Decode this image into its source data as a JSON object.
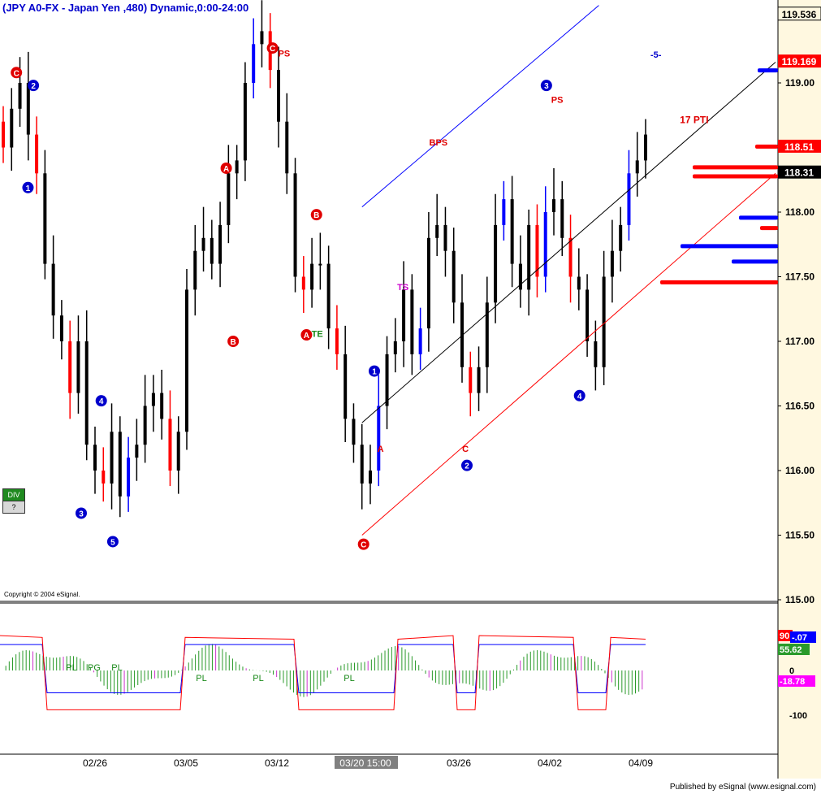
{
  "title": "(JPY A0-FX - Japan Yen  ,480) Dynamic,0:00-24:00",
  "copyright": "Copyright © 2004 eSignal.",
  "published": "Published by eSignal (www.esignal.com)",
  "buttons": {
    "div": "DIV",
    "help": "?"
  },
  "colors": {
    "background": "#ffffff",
    "axis_bg": "#fff8e0",
    "up": "#0000ff",
    "down": "#ff0000",
    "neutral": "#000000",
    "channel_top": "#0000ff",
    "channel_bottom": "#ff0000",
    "channel_mid": "#000000",
    "histogram_green": "#2a9a2a",
    "histogram_magenta": "#cc33cc"
  },
  "chart_data": [
    {
      "type": "candlestick",
      "title": "(JPY A0-FX - Japan Yen  ,480) Dynamic,0:00-24:00",
      "ylim": [
        115.0,
        119.6
      ],
      "y_ticks": [
        "119.00",
        "118.50",
        "118.00",
        "117.50",
        "117.00",
        "116.50",
        "116.00",
        "115.50",
        "115.00"
      ],
      "y_tick_values": [
        119.0,
        118.5,
        118.0,
        117.5,
        117.0,
        116.5,
        116.0,
        115.5,
        115.0
      ],
      "x_labels": [
        "02/26",
        "03/05",
        "03/12",
        "03/20 15:00",
        "03/26",
        "04/02",
        "04/09"
      ],
      "highlighted_x_label": "03/20 15:00",
      "price_labels": [
        {
          "text": "119.536",
          "value": 119.536,
          "color": "#fff8e0",
          "text_color": "#000000"
        },
        {
          "text": "119.169",
          "value": 119.169,
          "color": "#ff0000",
          "text_color": "#ffffff"
        },
        {
          "text": "118.51",
          "value": 118.51,
          "color": "#ff0000",
          "text_color": "#ffffff"
        },
        {
          "text": "118.31",
          "value": 118.31,
          "color": "#000000",
          "text_color": "#ffffff"
        }
      ],
      "closes": [
        118.5,
        118.8,
        119.0,
        118.6,
        118.3,
        117.6,
        117.2,
        117.0,
        116.6,
        117.0,
        116.2,
        116.0,
        115.9,
        116.3,
        115.8,
        116.1,
        116.2,
        116.5,
        116.6,
        116.4,
        116.0,
        116.3,
        117.4,
        117.7,
        117.8,
        117.6,
        117.9,
        118.3,
        118.4,
        119.0,
        119.3,
        119.4,
        119.1,
        118.7,
        118.3,
        117.5,
        117.4,
        117.6,
        117.6,
        117.1,
        116.9,
        116.4,
        116.2,
        115.9,
        116.0,
        116.5,
        116.9,
        117.0,
        117.4,
        116.9,
        117.1,
        117.8,
        117.9,
        117.7,
        117.3,
        116.8,
        116.6,
        116.8,
        117.3,
        117.9,
        118.1,
        117.6,
        117.4,
        117.9,
        117.5,
        118.0,
        118.1,
        117.8,
        117.5,
        117.4,
        117.0,
        116.8,
        117.5,
        117.7,
        117.9,
        118.3,
        118.4,
        118.6
      ],
      "annotations": [
        {
          "text": "C",
          "style": "circle-red",
          "x": 0.016,
          "y": 119.08
        },
        {
          "text": "2",
          "style": "circle-blue",
          "x": 0.038,
          "y": 118.98
        },
        {
          "text": "1",
          "style": "circle-blue",
          "x": 0.031,
          "y": 118.19
        },
        {
          "text": "3",
          "style": "circle-blue",
          "x": 0.1,
          "y": 115.67
        },
        {
          "text": "4",
          "style": "circle-blue",
          "x": 0.126,
          "y": 116.54
        },
        {
          "text": "5",
          "style": "circle-blue",
          "x": 0.141,
          "y": 115.45
        },
        {
          "text": "A",
          "style": "circle-red",
          "x": 0.288,
          "y": 118.34
        },
        {
          "text": "B",
          "style": "circle-red",
          "x": 0.297,
          "y": 117.0
        },
        {
          "text": "C",
          "style": "circle-red",
          "x": 0.348,
          "y": 119.27
        },
        {
          "text": "PS",
          "style": "text-red",
          "x": 0.363,
          "y": 119.23
        },
        {
          "text": "B",
          "style": "circle-red",
          "x": 0.405,
          "y": 117.98
        },
        {
          "text": "A",
          "style": "circle-red",
          "x": 0.392,
          "y": 117.05
        },
        {
          "text": "TE",
          "style": "text-green",
          "x": 0.406,
          "y": 117.06
        },
        {
          "text": "1",
          "style": "circle-blue",
          "x": 0.48,
          "y": 116.77
        },
        {
          "text": "C",
          "style": "circle-red",
          "x": 0.466,
          "y": 115.43
        },
        {
          "text": "A",
          "style": "text-red",
          "x": 0.488,
          "y": 116.17
        },
        {
          "text": "TS",
          "style": "text-magenta",
          "x": 0.517,
          "y": 117.42
        },
        {
          "text": "BPS",
          "style": "text-red",
          "x": 0.563,
          "y": 118.54
        },
        {
          "text": "2",
          "style": "circle-blue",
          "x": 0.6,
          "y": 116.04
        },
        {
          "text": "C",
          "style": "text-red",
          "x": 0.598,
          "y": 116.17
        },
        {
          "text": "3",
          "style": "circle-blue",
          "x": 0.703,
          "y": 118.98
        },
        {
          "text": "PS",
          "style": "text-red",
          "x": 0.717,
          "y": 118.87
        },
        {
          "text": "4",
          "style": "circle-blue",
          "x": 0.746,
          "y": 116.58
        },
        {
          "text": "17 PTI",
          "style": "box-red",
          "x": 0.876,
          "y": 118.72
        },
        {
          "text": "-5-",
          "style": "text-blue",
          "x": 0.845,
          "y": 119.22
        }
      ]
    },
    {
      "type": "histogram",
      "y_ticks": [
        "0",
        "-100"
      ],
      "y_tick_values": [
        0,
        -100
      ],
      "markers": [
        "PL",
        "PG",
        "PL",
        "PL",
        "PL",
        "PL"
      ],
      "value_labels": [
        {
          "text": "90",
          "value": 90,
          "color": "#ff0000"
        },
        {
          "text": "-.07",
          "value": -0.07,
          "color": "#0000ff"
        },
        {
          "text": "55.62",
          "value": 55.62,
          "color": "#2a9a2a"
        },
        {
          "text": "-18.78",
          "value": -18.78,
          "color": "#ff00ff"
        }
      ]
    }
  ]
}
